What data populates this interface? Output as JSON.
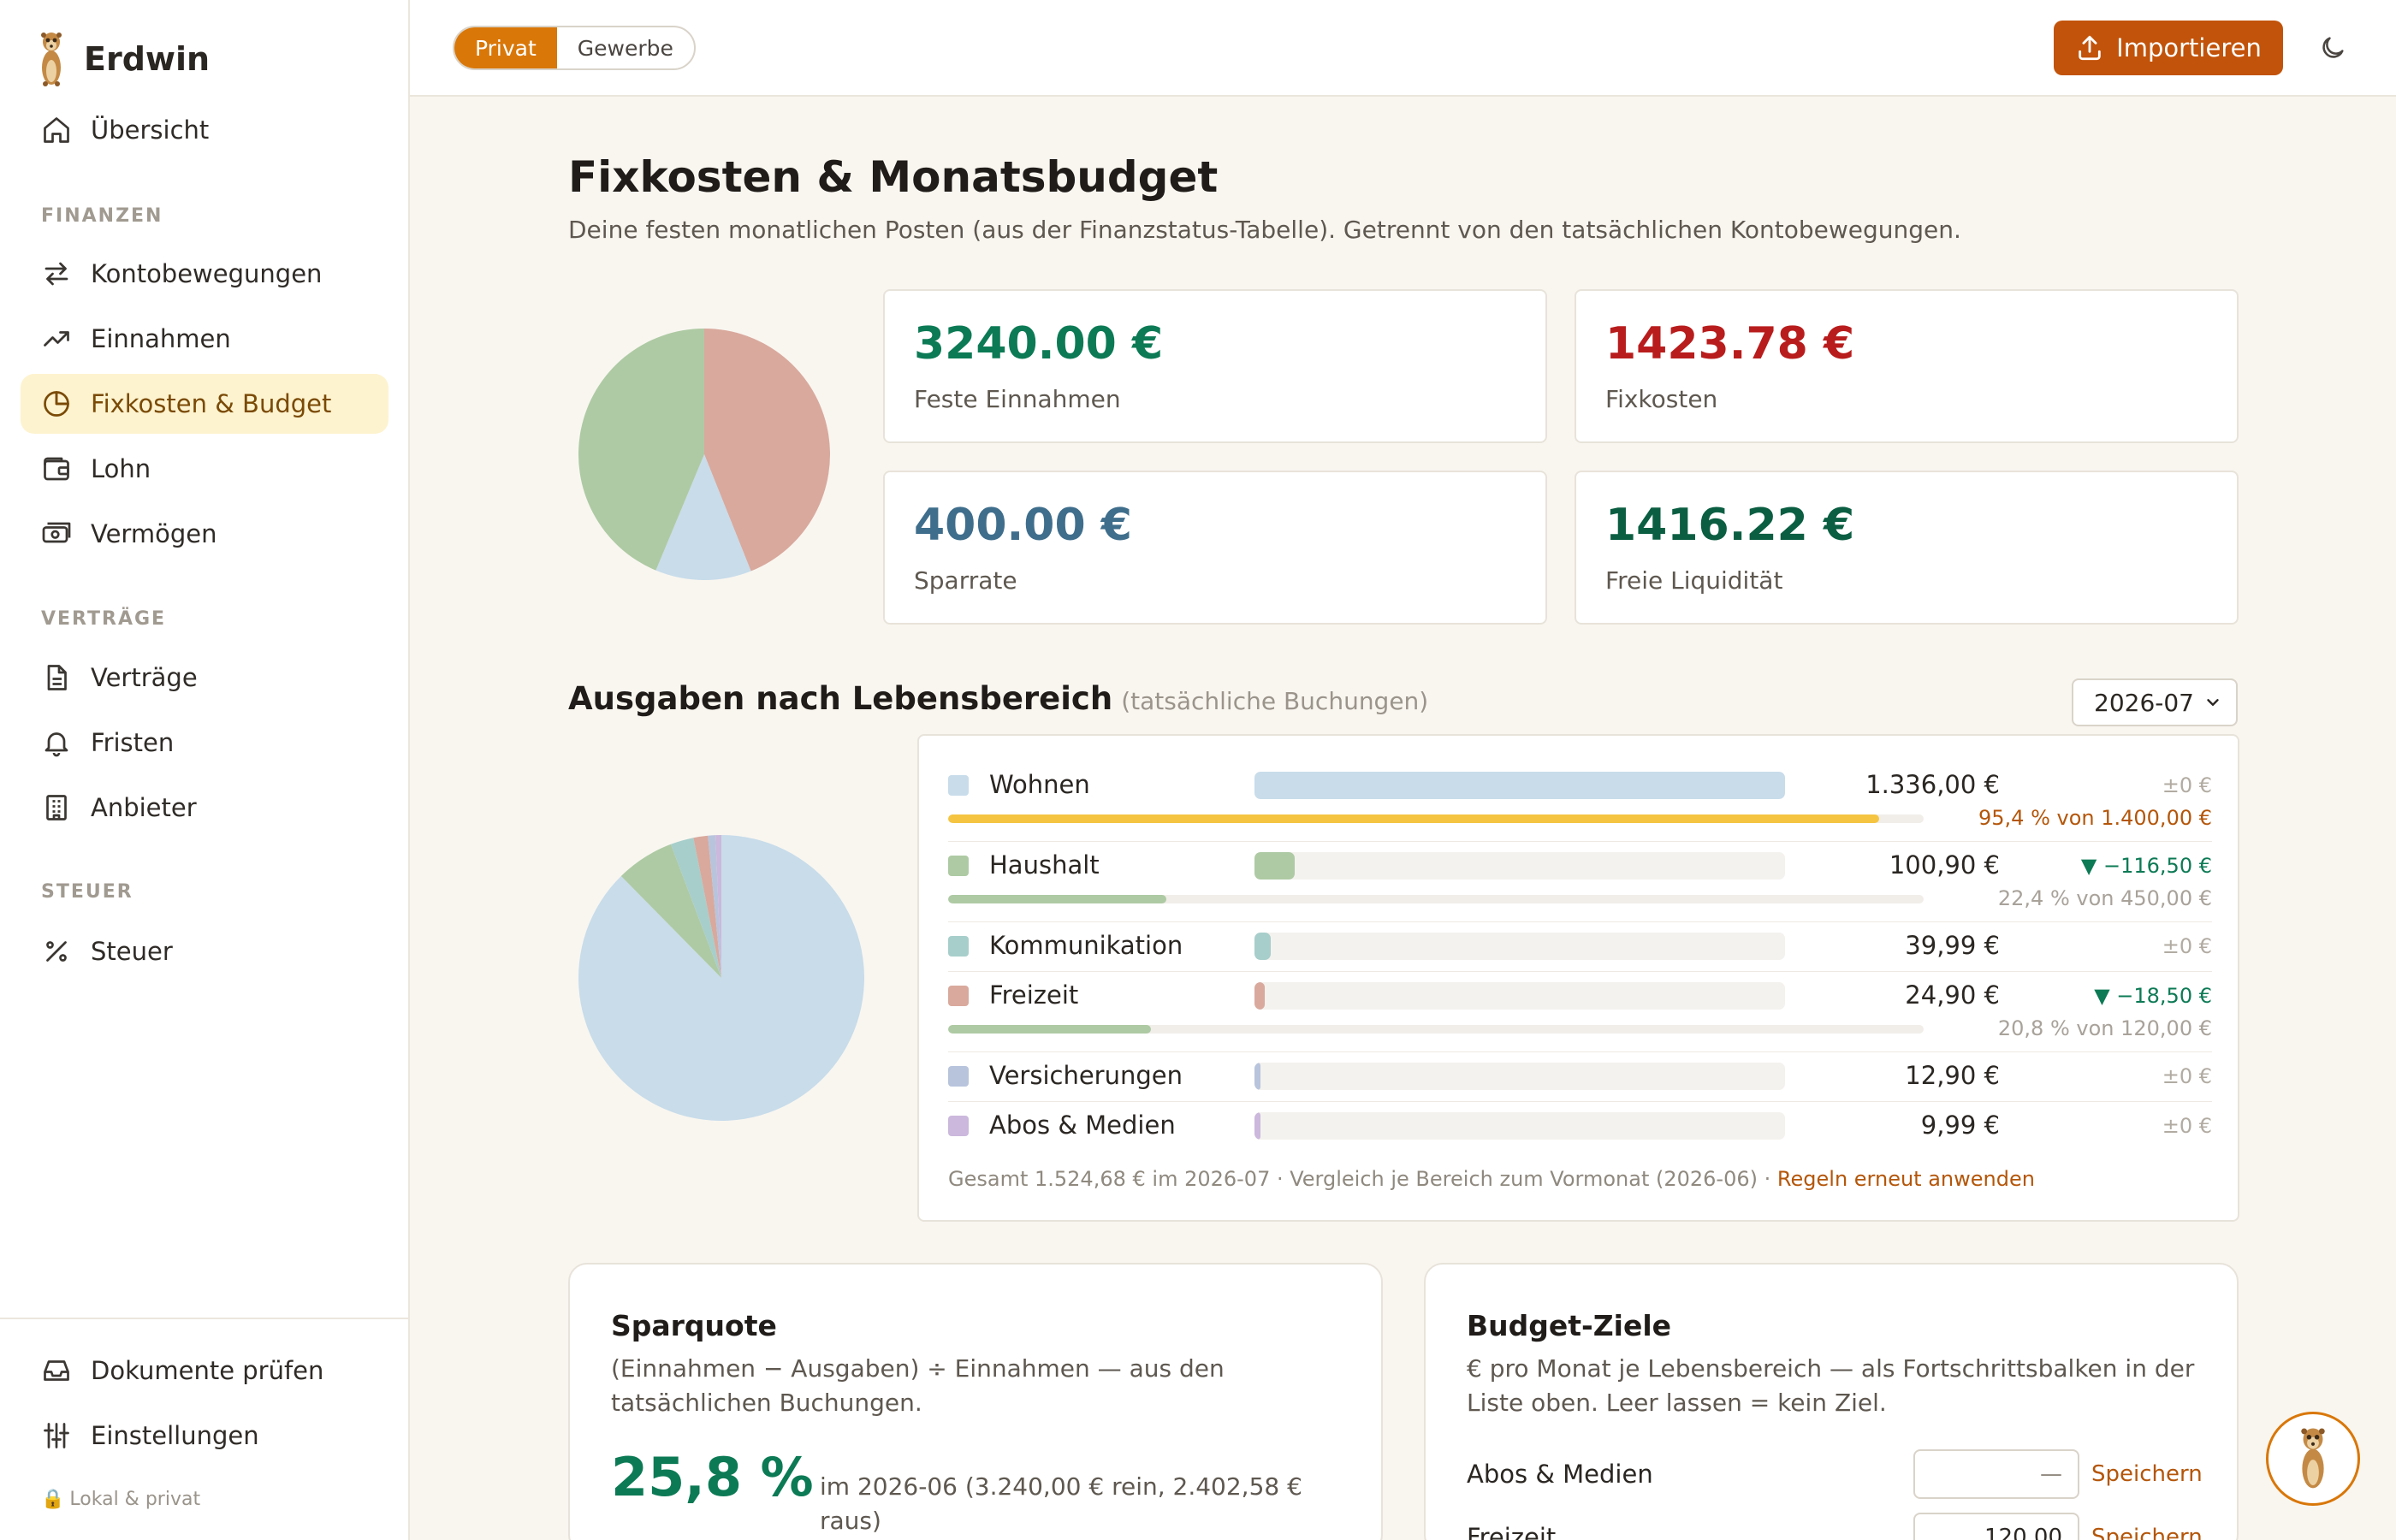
{
  "app": {
    "name": "Erdwin",
    "footer_note": "Lokal & privat"
  },
  "sidebar": {
    "overview": "Übersicht",
    "sections": {
      "finanzen": "FINANZEN",
      "vertraege": "VERTRÄGE",
      "steuer": "STEUER"
    },
    "items": {
      "kontobewegungen": "Kontobewegungen",
      "einnahmen": "Einnahmen",
      "fixkosten": "Fixkosten & Budget",
      "lohn": "Lohn",
      "vermoegen": "Vermögen",
      "vertraege": "Verträge",
      "fristen": "Fristen",
      "anbieter": "Anbieter",
      "steuer": "Steuer",
      "dokumente": "Dokumente prüfen",
      "einstellungen": "Einstellungen"
    },
    "active_item": "Fixkosten & Budget"
  },
  "topbar": {
    "segments": [
      "Privat",
      "Gewerbe"
    ],
    "active_segment": "Privat",
    "import_label": "Importieren"
  },
  "page": {
    "title": "Fixkosten & Monatsbudget",
    "subtitle": "Deine festen monatlichen Posten (aus der Finanzstatus-Tabelle). Getrennt von den tatsächlichen Kontobewegungen."
  },
  "summary_pie": {
    "slices": [
      {
        "label": "Fixkosten",
        "value": 1423.78,
        "color": "#d9a99d"
      },
      {
        "label": "Sparrate",
        "value": 400.0,
        "color": "#c8dcea"
      },
      {
        "label": "Freie Liquidität",
        "value": 1416.22,
        "color": "#aecaa4"
      }
    ]
  },
  "stats": {
    "income": {
      "value": "3240.00 €",
      "label": "Feste Einnahmen",
      "color": "#0c7a55"
    },
    "fixed": {
      "value": "1423.78 €",
      "label": "Fixkosten",
      "color": "#b91c1c"
    },
    "savings": {
      "value": "400.00 €",
      "label": "Sparrate",
      "color": "#3f6e8c"
    },
    "free": {
      "value": "1416.22 €",
      "label": "Freie Liquidität",
      "color": "#0b5e42"
    }
  },
  "spending": {
    "title": "Ausgaben nach Lebensbereich",
    "title_note": "(tatsächliche Buchungen)",
    "month": "2026-07",
    "categories": [
      {
        "name": "Wohnen",
        "value": 1336.0,
        "amount": "1.336,00 €",
        "delta": "±0 €",
        "trend": "zero",
        "color": "#c8dcea",
        "budget": {
          "percent": 95.4,
          "text": "95,4 % von 1.400,00 €",
          "fill": "#f5c542",
          "text_color": "#b4560a"
        }
      },
      {
        "name": "Haushalt",
        "value": 100.9,
        "amount": "100,90 €",
        "delta": "▼ −116,50 €",
        "trend": "down",
        "color": "#aecaa4",
        "budget": {
          "percent": 22.4,
          "text": "22,4 % von 450,00 €",
          "fill": "#aecaa4",
          "text_color": "#a8a29a"
        }
      },
      {
        "name": "Kommunikation",
        "value": 39.99,
        "amount": "39,99 €",
        "delta": "±0 €",
        "trend": "zero",
        "color": "#a7cecb",
        "budget": null
      },
      {
        "name": "Freizeit",
        "value": 24.9,
        "amount": "24,90 €",
        "delta": "▼ −18,50 €",
        "trend": "down",
        "color": "#d9a99d",
        "budget": {
          "percent": 20.8,
          "text": "20,8 % von 120,00 €",
          "fill": "#aecaa4",
          "text_color": "#a8a29a"
        }
      },
      {
        "name": "Versicherungen",
        "value": 12.9,
        "amount": "12,90 €",
        "delta": "±0 €",
        "trend": "zero",
        "color": "#b8c4dc",
        "budget": null
      },
      {
        "name": "Abos & Medien",
        "value": 9.99,
        "amount": "9,99 €",
        "delta": "±0 €",
        "trend": "zero",
        "color": "#cbb8dc",
        "budget": null
      }
    ],
    "footer_text": "Gesamt 1.524,68 € im 2026-07 · Vergleich je Bereich zum Vormonat (2026-06) ·",
    "footer_link": "Regeln erneut anwenden"
  },
  "savings_quota": {
    "title": "Sparquote",
    "description": "(Einnahmen − Ausgaben) ÷ Einnahmen — aus den tatsächlichen Buchungen.",
    "value": "25,8 %",
    "detail": "im 2026-06 (3.240,00 € rein, 2.402,58 € raus)"
  },
  "budget_goals": {
    "title": "Budget-Ziele",
    "description": "€ pro Monat je Lebensbereich — als Fortschrittsbalken in der Liste oben. Leer lassen = kein Ziel.",
    "save_label": "Speichern",
    "goals": [
      {
        "name": "Abos & Medien",
        "value": "—"
      },
      {
        "name": "Freizeit",
        "value": "120,00"
      }
    ]
  }
}
